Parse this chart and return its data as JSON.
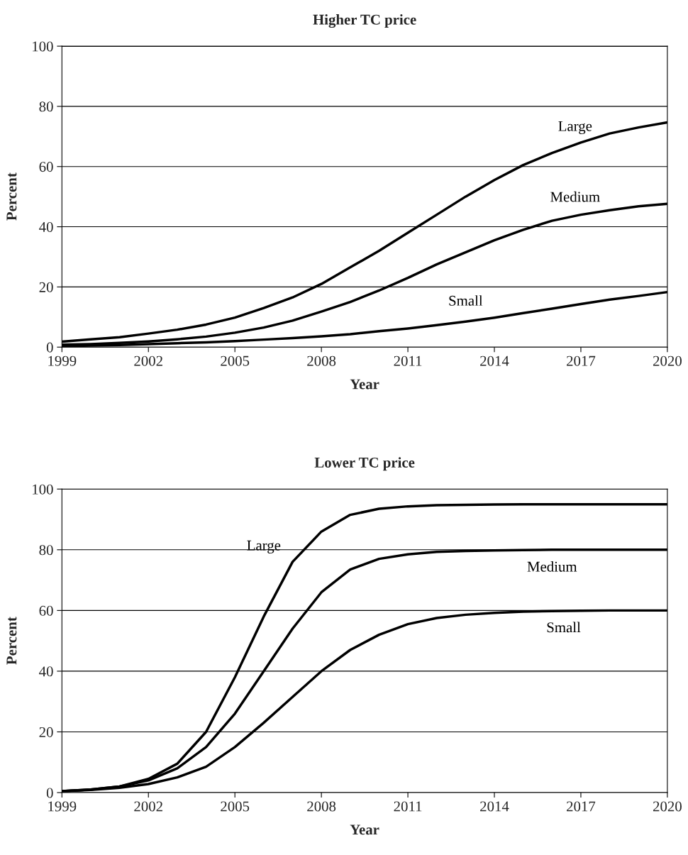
{
  "chart_data": [
    {
      "type": "line",
      "title": "Higher TC price",
      "xlabel": "Year",
      "ylabel": "Percent",
      "x": [
        1999,
        2000,
        2001,
        2002,
        2003,
        2004,
        2005,
        2006,
        2007,
        2008,
        2009,
        2010,
        2011,
        2012,
        2013,
        2014,
        2015,
        2016,
        2017,
        2018,
        2019,
        2020
      ],
      "series": [
        {
          "name": "Large",
          "color": "#000000",
          "values": [
            1.8,
            2.6,
            3.3,
            4.5,
            5.8,
            7.5,
            9.8,
            13,
            16.5,
            21,
            26.5,
            32,
            38,
            44,
            50,
            55.5,
            60.5,
            64.5,
            68,
            71,
            73,
            74.7
          ]
        },
        {
          "name": "Medium",
          "color": "#000000",
          "values": [
            0.8,
            1.0,
            1.4,
            1.9,
            2.6,
            3.5,
            4.8,
            6.5,
            8.8,
            11.8,
            15,
            18.8,
            23,
            27.5,
            31.5,
            35.5,
            39,
            42,
            44,
            45.5,
            46.8,
            47.6
          ]
        },
        {
          "name": "Small",
          "color": "#000000",
          "values": [
            0.3,
            0.5,
            0.7,
            1.0,
            1.3,
            1.6,
            2.0,
            2.5,
            3.0,
            3.6,
            4.3,
            5.3,
            6.2,
            7.3,
            8.5,
            9.8,
            11.3,
            12.8,
            14.3,
            15.8,
            17,
            18.3
          ]
        }
      ],
      "xlim": [
        1999,
        2020
      ],
      "xticks": [
        1999,
        2002,
        2005,
        2008,
        2011,
        2014,
        2017,
        2020
      ],
      "ylim": [
        0,
        100
      ],
      "yticks": [
        0,
        20,
        40,
        60,
        80,
        100
      ],
      "grid": "y",
      "legend": false,
      "marker": "none",
      "line_style": "solid"
    },
    {
      "type": "line",
      "title": "Lower TC price",
      "xlabel": "Year",
      "ylabel": "Percent",
      "x": [
        1999,
        2000,
        2001,
        2002,
        2003,
        2004,
        2005,
        2006,
        2007,
        2008,
        2009,
        2010,
        2011,
        2012,
        2013,
        2014,
        2015,
        2016,
        2017,
        2018,
        2019,
        2020
      ],
      "series": [
        {
          "name": "Large",
          "color": "#000000",
          "values": [
            0.5,
            1.0,
            2.0,
            4.5,
            9.5,
            20,
            38,
            58,
            76,
            86,
            91.5,
            93.5,
            94.3,
            94.7,
            94.8,
            94.9,
            95,
            95,
            95,
            95,
            95,
            95
          ]
        },
        {
          "name": "Medium",
          "color": "#000000",
          "values": [
            0.5,
            1.0,
            2.0,
            4.0,
            8.0,
            15,
            26,
            40,
            54,
            66,
            73.5,
            77,
            78.5,
            79.3,
            79.6,
            79.8,
            79.9,
            80,
            80,
            80,
            80,
            80
          ]
        },
        {
          "name": "Small",
          "color": "#000000",
          "values": [
            0.5,
            0.9,
            1.6,
            2.8,
            5,
            8.5,
            15,
            23,
            31.5,
            40,
            47,
            52,
            55.5,
            57.5,
            58.6,
            59.2,
            59.6,
            59.8,
            59.9,
            60,
            60,
            60
          ]
        }
      ],
      "xlim": [
        1999,
        2020
      ],
      "xticks": [
        1999,
        2002,
        2005,
        2008,
        2011,
        2014,
        2017,
        2020
      ],
      "ylim": [
        0,
        100
      ],
      "yticks": [
        0,
        20,
        40,
        60,
        80,
        100
      ],
      "grid": "y",
      "legend": false,
      "marker": "none",
      "line_style": "solid"
    }
  ]
}
